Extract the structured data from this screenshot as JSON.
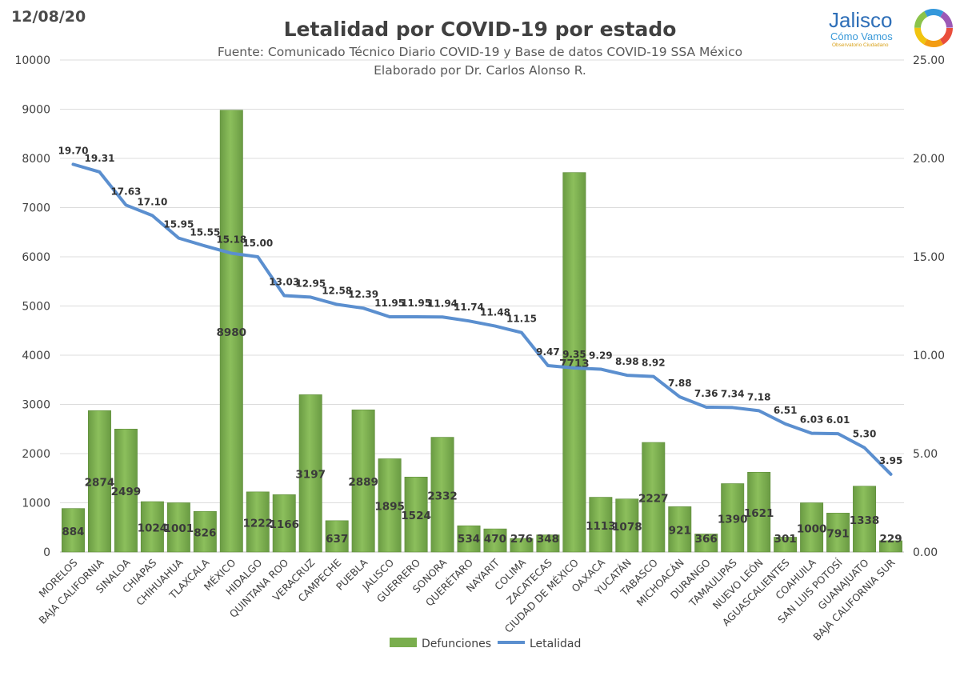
{
  "header": {
    "date": "12/08/20",
    "title": "Letalidad por COVID-19 por estado",
    "subtitle1": "Fuente: Comunicado Técnico Diario COVID-19 y Base de datos COVID-19 SSA México",
    "subtitle2": "Elaborado por Dr. Carlos Alonso R."
  },
  "logo": {
    "name": "Jalisco",
    "sub": "Cómo Vamos",
    "tag": "Observatorio Ciudadano"
  },
  "chart_data": {
    "type": "bar",
    "categories": [
      "MORELOS",
      "BAJA CALIFORNIA",
      "SINALOA",
      "CHIAPAS",
      "CHIHUAHUA",
      "TLAXCALA",
      "MÉXICO",
      "HIDALGO",
      "QUINTANA ROO",
      "VERACRUZ",
      "CAMPECHE",
      "PUEBLA",
      "JALISCO",
      "GUERRERO",
      "SONORA",
      "QUERÉTARO",
      "NAYARIT",
      "COLIMA",
      "ZACATECAS",
      "CIUDAD DE MÉXICO",
      "OAXACA",
      "YUCATÁN",
      "TABASCO",
      "MICHOACÁN",
      "DURANGO",
      "TAMAULIPAS",
      "NUEVO LEÓN",
      "AGUASCALIENTES",
      "COAHUILA",
      "SAN LUIS POTOSÍ",
      "GUANAJUATO",
      "BAJA CALIFORNIA SUR"
    ],
    "series": [
      {
        "name": "Defunciones",
        "type": "bar",
        "axis": "left",
        "color": "#7aae4e",
        "values": [
          884,
          2874,
          2499,
          1024,
          1001,
          826,
          8980,
          1222,
          1166,
          3197,
          637,
          2889,
          1895,
          1524,
          2332,
          534,
          470,
          276,
          348,
          7713,
          1113,
          1078,
          2227,
          921,
          366,
          1390,
          1621,
          301,
          1000,
          791,
          1338,
          229
        ]
      },
      {
        "name": "Letalidad",
        "type": "line",
        "axis": "right",
        "color": "#5b8fcf",
        "values": [
          19.7,
          19.31,
          17.63,
          17.1,
          15.95,
          15.55,
          15.18,
          15.0,
          13.03,
          12.95,
          12.58,
          12.39,
          11.95,
          11.95,
          11.94,
          11.74,
          11.48,
          11.15,
          9.47,
          9.35,
          9.29,
          8.98,
          8.92,
          7.88,
          7.36,
          7.34,
          7.18,
          6.51,
          6.03,
          6.01,
          5.3,
          3.95
        ]
      }
    ],
    "y_left": {
      "min": 0,
      "max": 10000,
      "ticks": [
        "0",
        "1000",
        "2000",
        "3000",
        "4000",
        "5000",
        "6000",
        "7000",
        "8000",
        "9000",
        "10000"
      ]
    },
    "y_right": {
      "min": 0,
      "max": 25,
      "ticks": [
        "0.00",
        "5.00",
        "10.00",
        "15.00",
        "20.00",
        "25.00"
      ]
    },
    "grid": true,
    "legend_position": "bottom"
  }
}
